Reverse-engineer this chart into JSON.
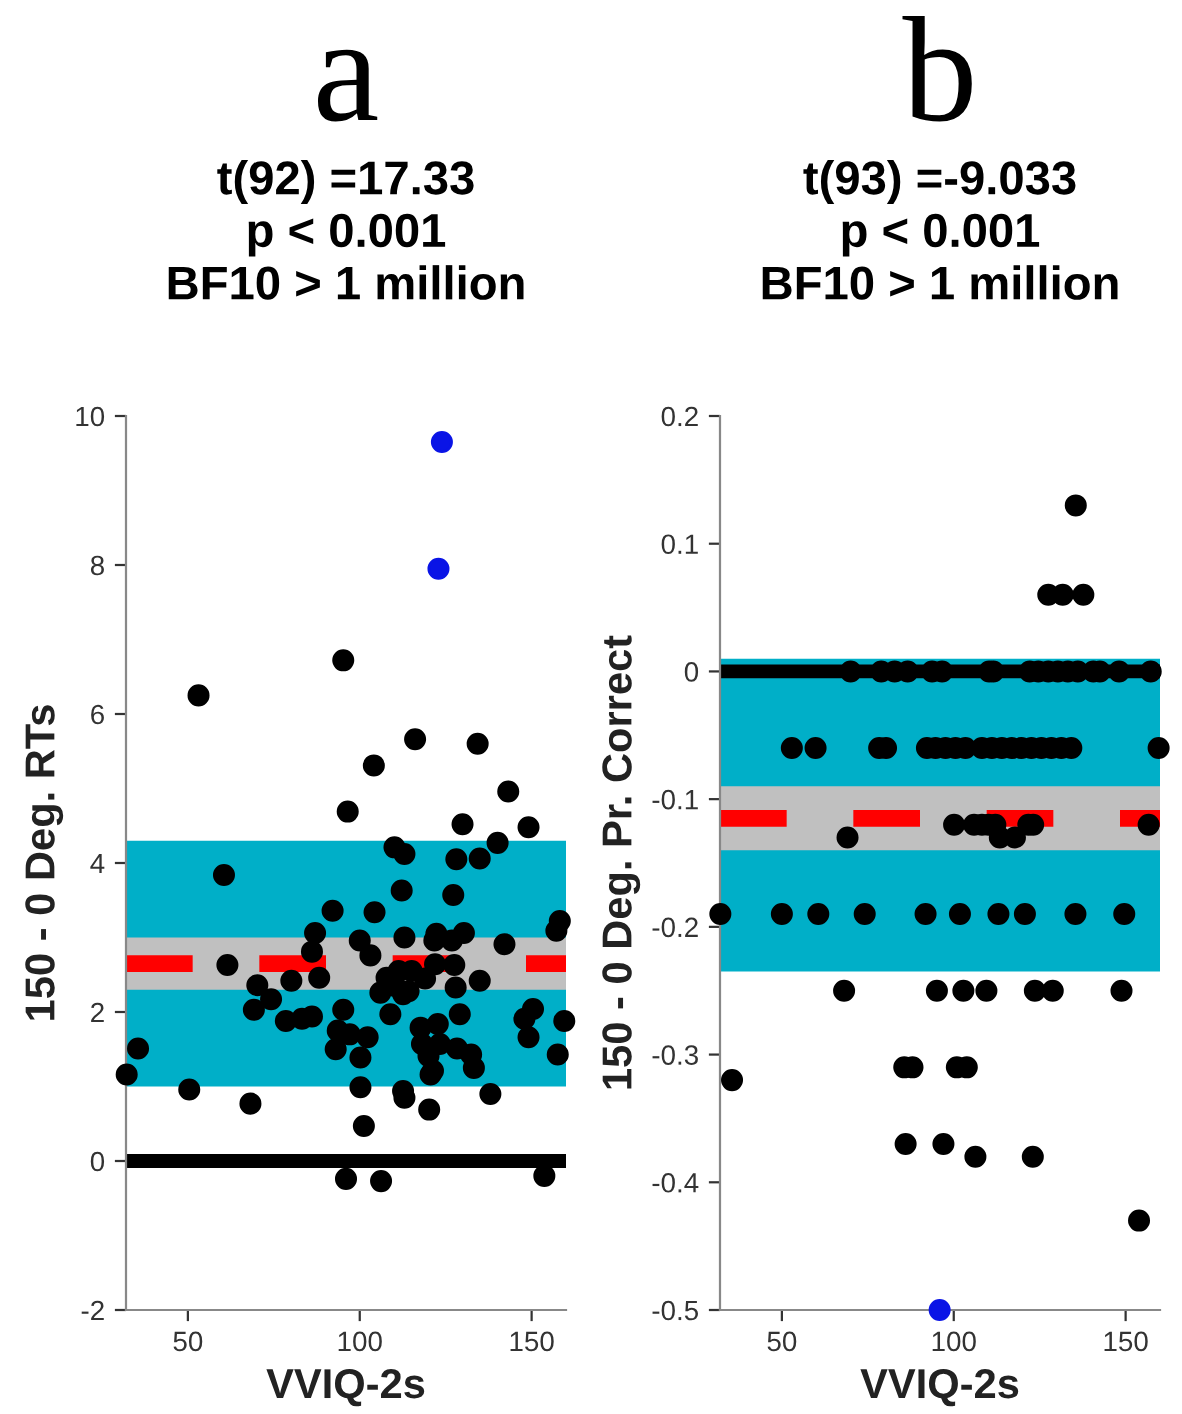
{
  "chart_data": [
    {
      "type": "scatter",
      "title": "a",
      "subtitle": "t(92) =17.33\np < 0.001\nBF10 > 1 million",
      "xlabel": "VVIQ-2s",
      "ylabel": "150 - 0 Deg. RTs",
      "xlim": [
        32,
        160
      ],
      "xticks": [
        50,
        100,
        150
      ],
      "ylim": [
        -2,
        10
      ],
      "yticks": [
        -2,
        0,
        2,
        4,
        6,
        8,
        10
      ],
      "grid": false,
      "legend": false,
      "marker": "circle",
      "bands": [
        {
          "axis": "y",
          "from": 1.0,
          "to": 4.3,
          "color": "#00afc8"
        },
        {
          "axis": "y",
          "from": 2.3,
          "to": 3.0,
          "color": "#c0c0c0"
        }
      ],
      "ref_lines": [
        {
          "axis": "y",
          "value": 2.65,
          "color": "#ff0000",
          "line_style": "dashed"
        },
        {
          "axis": "y",
          "value": 0,
          "color": "#000000",
          "line_style": "solid"
        }
      ],
      "series": [
        {
          "color": "#000000",
          "x": [
            32.2,
            35.5,
            50.4,
            60.5,
            61.5,
            68.2,
            69.2,
            70.2,
            74.2,
            78.5,
            80.1,
            83.2,
            86.1,
            86.1,
            87.0,
            88.2,
            92.1,
            93.0,
            95.2,
            96.5,
            93.6,
            97.1,
            100.2,
            102.3,
            100.0,
            103.1,
            104.3,
            106.0,
            100.2,
            101.2,
            96.0,
            106.2,
            108.9,
            107.8,
            110.1,
            113.0,
            112.2,
            113.0,
            111.3,
            110.3,
            112.6,
            114.2,
            115.1,
            112.6,
            113.0,
            117.7,
            118.1,
            120.0,
            120.6,
            120.2,
            119.0,
            121.3,
            121.9,
            122.7,
            123.3,
            121.7,
            122.3,
            127.2,
            128.1,
            129.9,
            127.5,
            127.9,
            126.8,
            130.3,
            129.1,
            128.3,
            132.4,
            133.2,
            134.9,
            134.9,
            138.0,
            140.1,
            142.1,
            143.2,
            149.1,
            147.9,
            150.4,
            149.1,
            153.7,
            157.2,
            158.2,
            157.6,
            159.5,
            53.1,
            95.2,
            116.1,
            104.1,
            134.3
          ],
          "values": [
            1.16,
            1.51,
            0.96,
            3.84,
            2.63,
            0.77,
            2.03,
            2.36,
            2.17,
            1.88,
            2.42,
            1.91,
            1.94,
            2.81,
            3.06,
            2.46,
            3.36,
            1.5,
            2.03,
            4.69,
            1.75,
            1.7,
            1.39,
            1.66,
            2.96,
            2.76,
            3.34,
            2.26,
            0.99,
            0.47,
            -0.24,
            -0.27,
            1.97,
            2.46,
            4.21,
            4.12,
            3.63,
            3.0,
            2.55,
            2.35,
            2.24,
            2.28,
            2.55,
            0.94,
            0.85,
            1.79,
            1.57,
            1.41,
            1.16,
            0.69,
            2.45,
            1.21,
            2.64,
            1.84,
            1.57,
            2.96,
            3.05,
            3.57,
            4.05,
            4.52,
            2.63,
            2.33,
            2.96,
            3.06,
            1.97,
            1.51,
            1.43,
            1.25,
            2.42,
            4.06,
            0.9,
            4.27,
            2.91,
            4.96,
            4.48,
            1.91,
            2.04,
            1.66,
            -0.2,
            3.09,
            3.22,
            1.43,
            1.88,
            6.25,
            6.72,
            5.66,
            5.31,
            5.6
          ]
        },
        {
          "color": "#0a14e6",
          "x": [
            123.9,
            122.9
          ],
          "values": [
            9.65,
            7.95
          ]
        }
      ]
    },
    {
      "type": "scatter",
      "title": "b",
      "subtitle": "t(93) =-9.033\np < 0.001\nBF10 > 1 million",
      "xlabel": "VVIQ-2s",
      "ylabel": "150 - 0 Deg. Pr. Correct",
      "xlim": [
        32,
        160
      ],
      "xticks": [
        50,
        100,
        150
      ],
      "ylim": [
        -0.5,
        0.2
      ],
      "yticks": [
        -0.5,
        -0.4,
        -0.3,
        -0.2,
        -0.1,
        0,
        0.1,
        0.2
      ],
      "grid": false,
      "legend": false,
      "marker": "circle",
      "bands": [
        {
          "axis": "y",
          "from": -0.235,
          "to": 0.01,
          "color": "#00afc8"
        },
        {
          "axis": "y",
          "from": -0.14,
          "to": -0.09,
          "color": "#c0c0c0"
        }
      ],
      "ref_lines": [
        {
          "axis": "y",
          "value": -0.115,
          "color": "#ff0000",
          "line_style": "dashed"
        },
        {
          "axis": "y",
          "value": 0,
          "color": "#000000",
          "line_style": "solid"
        }
      ],
      "series": [
        {
          "color": "#000000",
          "x": [
            135.5,
            127.5,
            131.7,
            137.7,
            70.0,
            78.9,
            82.8,
            86.6,
            93.7,
            96.6,
            110.3,
            111.5,
            122.1,
            124.6,
            127.5,
            130.3,
            133.2,
            136.1,
            140.6,
            142.5,
            148.1,
            157.3,
            52.9,
            59.8,
            78.3,
            80.3,
            92.2,
            94.7,
            97.6,
            100.5,
            103.4,
            108.2,
            111.1,
            114.0,
            116.9,
            119.7,
            122.6,
            125.5,
            128.4,
            131.3,
            134.2,
            159.6,
            100.1,
            105.9,
            108.2,
            110.1,
            112.1,
            121.7,
            123.1,
            156.7,
            69.1,
            113.4,
            117.8,
            32.1,
            50.0,
            60.6,
            74.1,
            91.8,
            101.8,
            113.0,
            120.7,
            135.4,
            149.6,
            68.1,
            95.1,
            102.8,
            109.5,
            123.6,
            128.8,
            148.8,
            85.6,
            88.0,
            100.9,
            103.8,
            35.5,
            86.0,
            97.0,
            106.3,
            123.0,
            153.9
          ],
          "values": [
            0.13,
            0.06,
            0.06,
            0.06,
            0,
            0,
            0,
            0,
            0,
            0,
            0,
            0,
            0,
            0,
            0,
            0,
            0,
            0,
            0,
            0,
            0,
            0,
            -0.06,
            -0.06,
            -0.06,
            -0.06,
            -0.06,
            -0.06,
            -0.06,
            -0.06,
            -0.06,
            -0.06,
            -0.06,
            -0.06,
            -0.06,
            -0.06,
            -0.06,
            -0.06,
            -0.06,
            -0.06,
            -0.06,
            -0.06,
            -0.12,
            -0.12,
            -0.12,
            -0.12,
            -0.12,
            -0.12,
            -0.12,
            -0.12,
            -0.13,
            -0.13,
            -0.13,
            -0.19,
            -0.19,
            -0.19,
            -0.19,
            -0.19,
            -0.19,
            -0.19,
            -0.19,
            -0.19,
            -0.19,
            -0.25,
            -0.25,
            -0.25,
            -0.25,
            -0.25,
            -0.25,
            -0.25,
            -0.31,
            -0.31,
            -0.31,
            -0.31,
            -0.32,
            -0.37,
            -0.37,
            -0.38,
            -0.38,
            -0.43
          ]
        },
        {
          "color": "#0a14e6",
          "x": [
            95.9
          ],
          "values": [
            -0.5
          ]
        }
      ]
    }
  ]
}
